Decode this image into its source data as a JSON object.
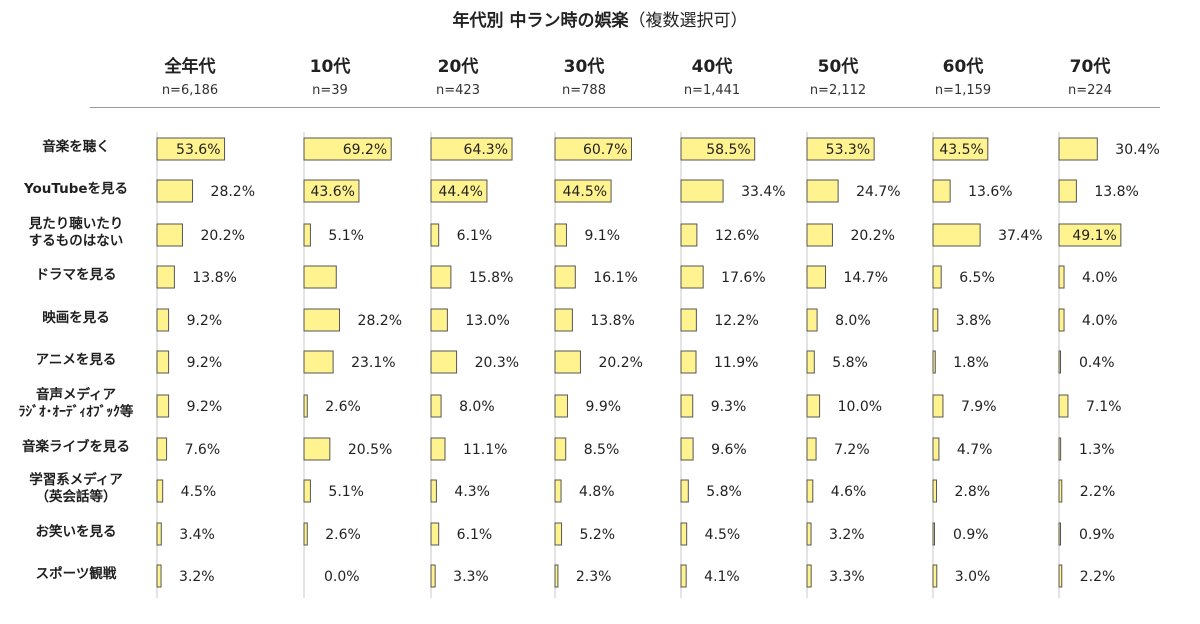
{
  "chart_data": {
    "type": "bar",
    "title": "年代別 中ラン時の娯楽",
    "subtitle": "（複数選択可）",
    "groups": [
      {
        "name": "全年代",
        "n": "n=6,186"
      },
      {
        "name": "10代",
        "n": "n=39"
      },
      {
        "name": "20代",
        "n": "n=423"
      },
      {
        "name": "30代",
        "n": "n=788"
      },
      {
        "name": "40代",
        "n": "n=1,441"
      },
      {
        "name": "50代",
        "n": "n=2,112"
      },
      {
        "name": "60代",
        "n": "n=1,159"
      },
      {
        "name": "70代",
        "n": "n=224"
      }
    ],
    "categories": [
      [
        "音楽を聴く"
      ],
      [
        "YouTubeを見る"
      ],
      [
        "見たり聴いたり",
        "するものはない"
      ],
      [
        "ドラマを見る"
      ],
      [
        "映画を見る"
      ],
      [
        "アニメを見る"
      ],
      [
        "音声メディア",
        "ﾗｼﾞｵ･ｵｰﾃﾞｨｵﾌﾞｯｸ等"
      ],
      [
        "音楽ライブを見る"
      ],
      [
        "学習系メディア",
        "（英会話等）"
      ],
      [
        "お笑いを見る"
      ],
      [
        "スポーツ観戦"
      ]
    ],
    "series": [
      {
        "name": "全年代",
        "values": [
          53.6,
          28.2,
          20.2,
          13.8,
          9.2,
          9.2,
          9.2,
          7.6,
          4.5,
          3.4,
          3.2
        ]
      },
      {
        "name": "10代",
        "values": [
          69.2,
          43.6,
          5.1,
          25.6,
          28.2,
          23.1,
          2.6,
          20.5,
          5.1,
          2.6,
          0.0
        ]
      },
      {
        "name": "20代",
        "values": [
          64.3,
          44.4,
          6.1,
          15.8,
          13.0,
          20.3,
          8.0,
          11.1,
          4.3,
          6.1,
          3.3
        ]
      },
      {
        "name": "30代",
        "values": [
          60.7,
          44.5,
          9.1,
          16.1,
          13.8,
          20.2,
          9.9,
          8.5,
          4.8,
          5.2,
          2.3
        ]
      },
      {
        "name": "40代",
        "values": [
          58.5,
          33.4,
          12.6,
          17.6,
          12.2,
          11.9,
          9.3,
          9.6,
          5.8,
          4.5,
          4.1
        ]
      },
      {
        "name": "50代",
        "values": [
          53.3,
          24.7,
          20.2,
          14.7,
          8.0,
          5.8,
          10.0,
          7.2,
          4.6,
          3.2,
          3.3
        ]
      },
      {
        "name": "60代",
        "values": [
          43.5,
          13.6,
          37.4,
          6.5,
          3.8,
          1.8,
          7.9,
          4.7,
          2.8,
          0.9,
          3.0
        ]
      },
      {
        "name": "70代",
        "values": [
          30.4,
          13.8,
          49.1,
          4.0,
          4.0,
          0.4,
          7.1,
          1.3,
          2.2,
          0.9,
          2.2
        ]
      }
    ],
    "value_labels": [
      [
        "53.6%",
        "28.2%",
        "20.2%",
        "13.8%",
        "9.2%",
        "9.2%",
        "9.2%",
        "7.6%",
        "4.5%",
        "3.4%",
        "3.2%"
      ],
      [
        "69.2%",
        "43.6%",
        "5.1%",
        "",
        "28.2%",
        "23.1%",
        "2.6%",
        "20.5%",
        "5.1%",
        "2.6%",
        "0.0%"
      ],
      [
        "64.3%",
        "44.4%",
        "6.1%",
        "15.8%",
        "13.0%",
        "20.3%",
        "8.0%",
        "11.1%",
        "4.3%",
        "6.1%",
        "3.3%"
      ],
      [
        "60.7%",
        "44.5%",
        "9.1%",
        "16.1%",
        "13.8%",
        "20.2%",
        "9.9%",
        "8.5%",
        "4.8%",
        "5.2%",
        "2.3%"
      ],
      [
        "58.5%",
        "33.4%",
        "12.6%",
        "17.6%",
        "12.2%",
        "11.9%",
        "9.3%",
        "9.6%",
        "5.8%",
        "4.5%",
        "4.1%"
      ],
      [
        "53.3%",
        "24.7%",
        "20.2%",
        "14.7%",
        "8.0%",
        "5.8%",
        "10.0%",
        "7.2%",
        "4.6%",
        "3.2%",
        "3.3%"
      ],
      [
        "43.5%",
        "13.6%",
        "37.4%",
        "6.5%",
        "3.8%",
        "1.8%",
        "7.9%",
        "4.7%",
        "2.8%",
        "0.9%",
        "3.0%"
      ],
      [
        "30.4%",
        "13.8%",
        "49.1%",
        "4.0%",
        "4.0%",
        "0.4%",
        "7.1%",
        "1.3%",
        "2.2%",
        "0.9%",
        "2.2%"
      ]
    ],
    "bar_color": "#fff38f",
    "bar_outline": "#555555",
    "value_label_position": "inside-right-for-long-bars, outside-for-short-bars"
  }
}
